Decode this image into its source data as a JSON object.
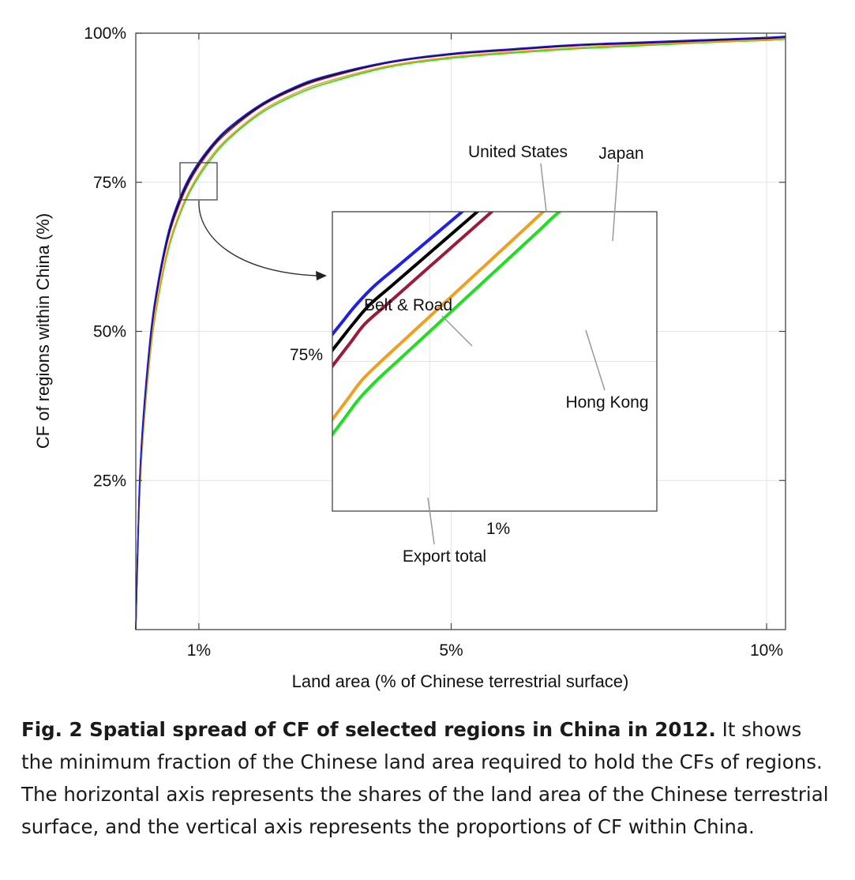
{
  "chart_data": {
    "type": "line",
    "xlabel": "Land area (% of Chinese terrestrial surface)",
    "ylabel": "CF of regions within China (%)",
    "xlim": [
      0.0,
      10.3
    ],
    "ylim": [
      0,
      100
    ],
    "x_ticks": [
      {
        "value": 1,
        "label": "1%"
      },
      {
        "value": 5,
        "label": "5%"
      },
      {
        "value": 10,
        "label": "10%"
      }
    ],
    "y_ticks": [
      {
        "value": 25,
        "label": "25%"
      },
      {
        "value": 50,
        "label": "50%"
      },
      {
        "value": 75,
        "label": "75%"
      },
      {
        "value": 100,
        "label": "100%"
      }
    ],
    "grid": true,
    "series": [
      {
        "name": "Belt & Road",
        "color": "#1f1fe6",
        "x": [
          0.0,
          0.05,
          0.1,
          0.2,
          0.3,
          0.5,
          0.7,
          0.9,
          1.2,
          1.5,
          2.0,
          2.5,
          3.0,
          4.0,
          5.0,
          6.0,
          7.0,
          8.0,
          9.0,
          10.0,
          10.3
        ],
        "y": [
          0,
          22,
          33,
          46,
          55,
          66,
          72.5,
          76.8,
          81.2,
          84.4,
          88.2,
          90.9,
          92.8,
          95.2,
          96.6,
          97.4,
          98.1,
          98.5,
          98.9,
          99.3,
          99.5
        ]
      },
      {
        "name": "United States",
        "color": "#000000",
        "x": [
          0.0,
          0.05,
          0.1,
          0.2,
          0.3,
          0.5,
          0.7,
          0.9,
          1.2,
          1.5,
          2.0,
          2.5,
          3.0,
          4.0,
          5.0,
          6.0,
          7.0,
          8.0,
          9.0,
          10.0,
          10.3
        ],
        "y": [
          0,
          21.5,
          32.5,
          45.5,
          54.5,
          65.5,
          72,
          76.4,
          80.9,
          84.1,
          88,
          90.7,
          92.6,
          95.1,
          96.5,
          97.3,
          98,
          98.4,
          98.8,
          99.2,
          99.4
        ]
      },
      {
        "name": "Export total",
        "color": "#9e1a3a",
        "x": [
          0.0,
          0.05,
          0.1,
          0.2,
          0.3,
          0.5,
          0.7,
          0.9,
          1.2,
          1.5,
          2.0,
          2.5,
          3.0,
          4.0,
          5.0,
          6.0,
          7.0,
          8.0,
          9.0,
          10.0,
          10.3
        ],
        "y": [
          0,
          21,
          32,
          45,
          54,
          65,
          71.5,
          76,
          80.6,
          83.8,
          87.8,
          90.5,
          92.4,
          95,
          96.4,
          97.2,
          97.9,
          98.3,
          98.7,
          99.1,
          99.3
        ]
      },
      {
        "name": "Japan",
        "color": "#f0a020",
        "x": [
          0.0,
          0.05,
          0.1,
          0.2,
          0.3,
          0.5,
          0.7,
          0.9,
          1.2,
          1.5,
          2.0,
          2.5,
          3.0,
          4.0,
          5.0,
          6.0,
          7.0,
          8.0,
          9.0,
          10.0,
          10.3
        ],
        "y": [
          0,
          19.5,
          30.5,
          43.5,
          52.5,
          63.5,
          70,
          74.6,
          79.4,
          82.8,
          87,
          89.8,
          91.8,
          94.5,
          96,
          96.9,
          97.6,
          98.1,
          98.5,
          98.9,
          99.1
        ]
      },
      {
        "name": "Hong Kong",
        "color": "#22dd22",
        "x": [
          0.0,
          0.05,
          0.1,
          0.2,
          0.3,
          0.5,
          0.7,
          0.9,
          1.2,
          1.5,
          2.0,
          2.5,
          3.0,
          4.0,
          5.0,
          6.0,
          7.0,
          8.0,
          9.0,
          10.0,
          10.3
        ],
        "y": [
          0,
          19,
          30,
          43,
          52,
          63,
          69.6,
          74.2,
          79,
          82.5,
          86.7,
          89.5,
          91.5,
          94.3,
          95.8,
          96.7,
          97.4,
          97.9,
          98.4,
          98.8,
          99
        ]
      }
    ],
    "inset": {
      "x_tick_label": "1%",
      "y_tick_label": "75%",
      "annotations": [
        "United States",
        "Japan",
        "Belt & Road",
        "Hong Kong",
        "Export total"
      ]
    }
  },
  "caption": {
    "lead": "Fig. 2 Spatial spread of CF of selected regions in China in 2012.",
    "body": "It shows the minimum fraction of the Chinese land area required to hold the CFs of regions. The horizontal axis represents the shares of the land area of the Chinese terrestrial surface, and the vertical axis represents the proportions of CF within China."
  }
}
